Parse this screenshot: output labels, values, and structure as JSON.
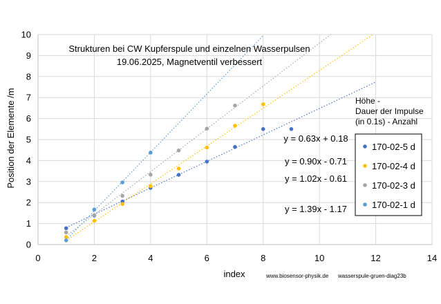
{
  "chart_data": {
    "type": "scatter",
    "title": "Strukturen bei CW Kupferspule und einzelnen Wasserpulsen",
    "subtitle": "19.06.2025, Magnetventil verbessert",
    "xlabel": "index",
    "ylabel": "Position der Elemente /m",
    "xlim": [
      0,
      14
    ],
    "ylim": [
      0,
      10
    ],
    "x_ticks": [
      "0",
      "2",
      "4",
      "6",
      "8",
      "10",
      "12",
      "14"
    ],
    "y_ticks": [
      "0",
      "1",
      "2",
      "3",
      "4",
      "5",
      "6",
      "7",
      "8",
      "9",
      "10"
    ],
    "grid": true,
    "legend_position": "right",
    "legend_title": [
      "Höhe -",
      "Dauer der Impulse",
      "(in 0.1s) -  Anzahl"
    ],
    "series": [
      {
        "name": "170-02-5 d",
        "color": "#4472c4",
        "x": [
          1,
          2,
          3,
          4,
          5,
          6,
          7,
          8,
          9
        ],
        "y": [
          0.78,
          1.38,
          2.05,
          2.7,
          3.32,
          3.95,
          4.65,
          5.5,
          5.5
        ],
        "trend_equation": "y = 0.63x + 0.18",
        "trend": {
          "slope": 0.63,
          "intercept": 0.18,
          "x_end": 12
        }
      },
      {
        "name": "170-02-4 d",
        "color": "#ffc000",
        "x": [
          1,
          2,
          3,
          4,
          5,
          6,
          7,
          8
        ],
        "y": [
          0.36,
          1.13,
          1.93,
          2.78,
          3.62,
          4.62,
          5.66,
          6.68
        ],
        "trend_equation": "y = 0.90x - 0.71",
        "trend": {
          "slope": 0.9,
          "intercept": -0.71,
          "x_end": 12
        }
      },
      {
        "name": "170-02-3 d",
        "color": "#a5a5a5",
        "x": [
          1,
          2,
          3,
          4,
          5,
          6,
          7
        ],
        "y": [
          0.58,
          1.4,
          2.32,
          3.33,
          4.48,
          5.52,
          6.62
        ],
        "trend_equation": "y = 1.02x - 0.61",
        "trend": {
          "slope": 1.02,
          "intercept": -0.61,
          "x_end": 10.4
        }
      },
      {
        "name": "170-02-1 d",
        "color": "#5b9bd5",
        "x": [
          1,
          2,
          3,
          4
        ],
        "y": [
          0.2,
          1.67,
          2.96,
          4.38
        ],
        "trend_equation": "y = 1.39x - 1.17",
        "trend": {
          "slope": 1.39,
          "intercept": -1.17,
          "x_end": 8.0
        }
      }
    ]
  },
  "footer": {
    "website": "www.biosensor-physik.de",
    "filename": "wasserspule-gruen-diag23b"
  }
}
